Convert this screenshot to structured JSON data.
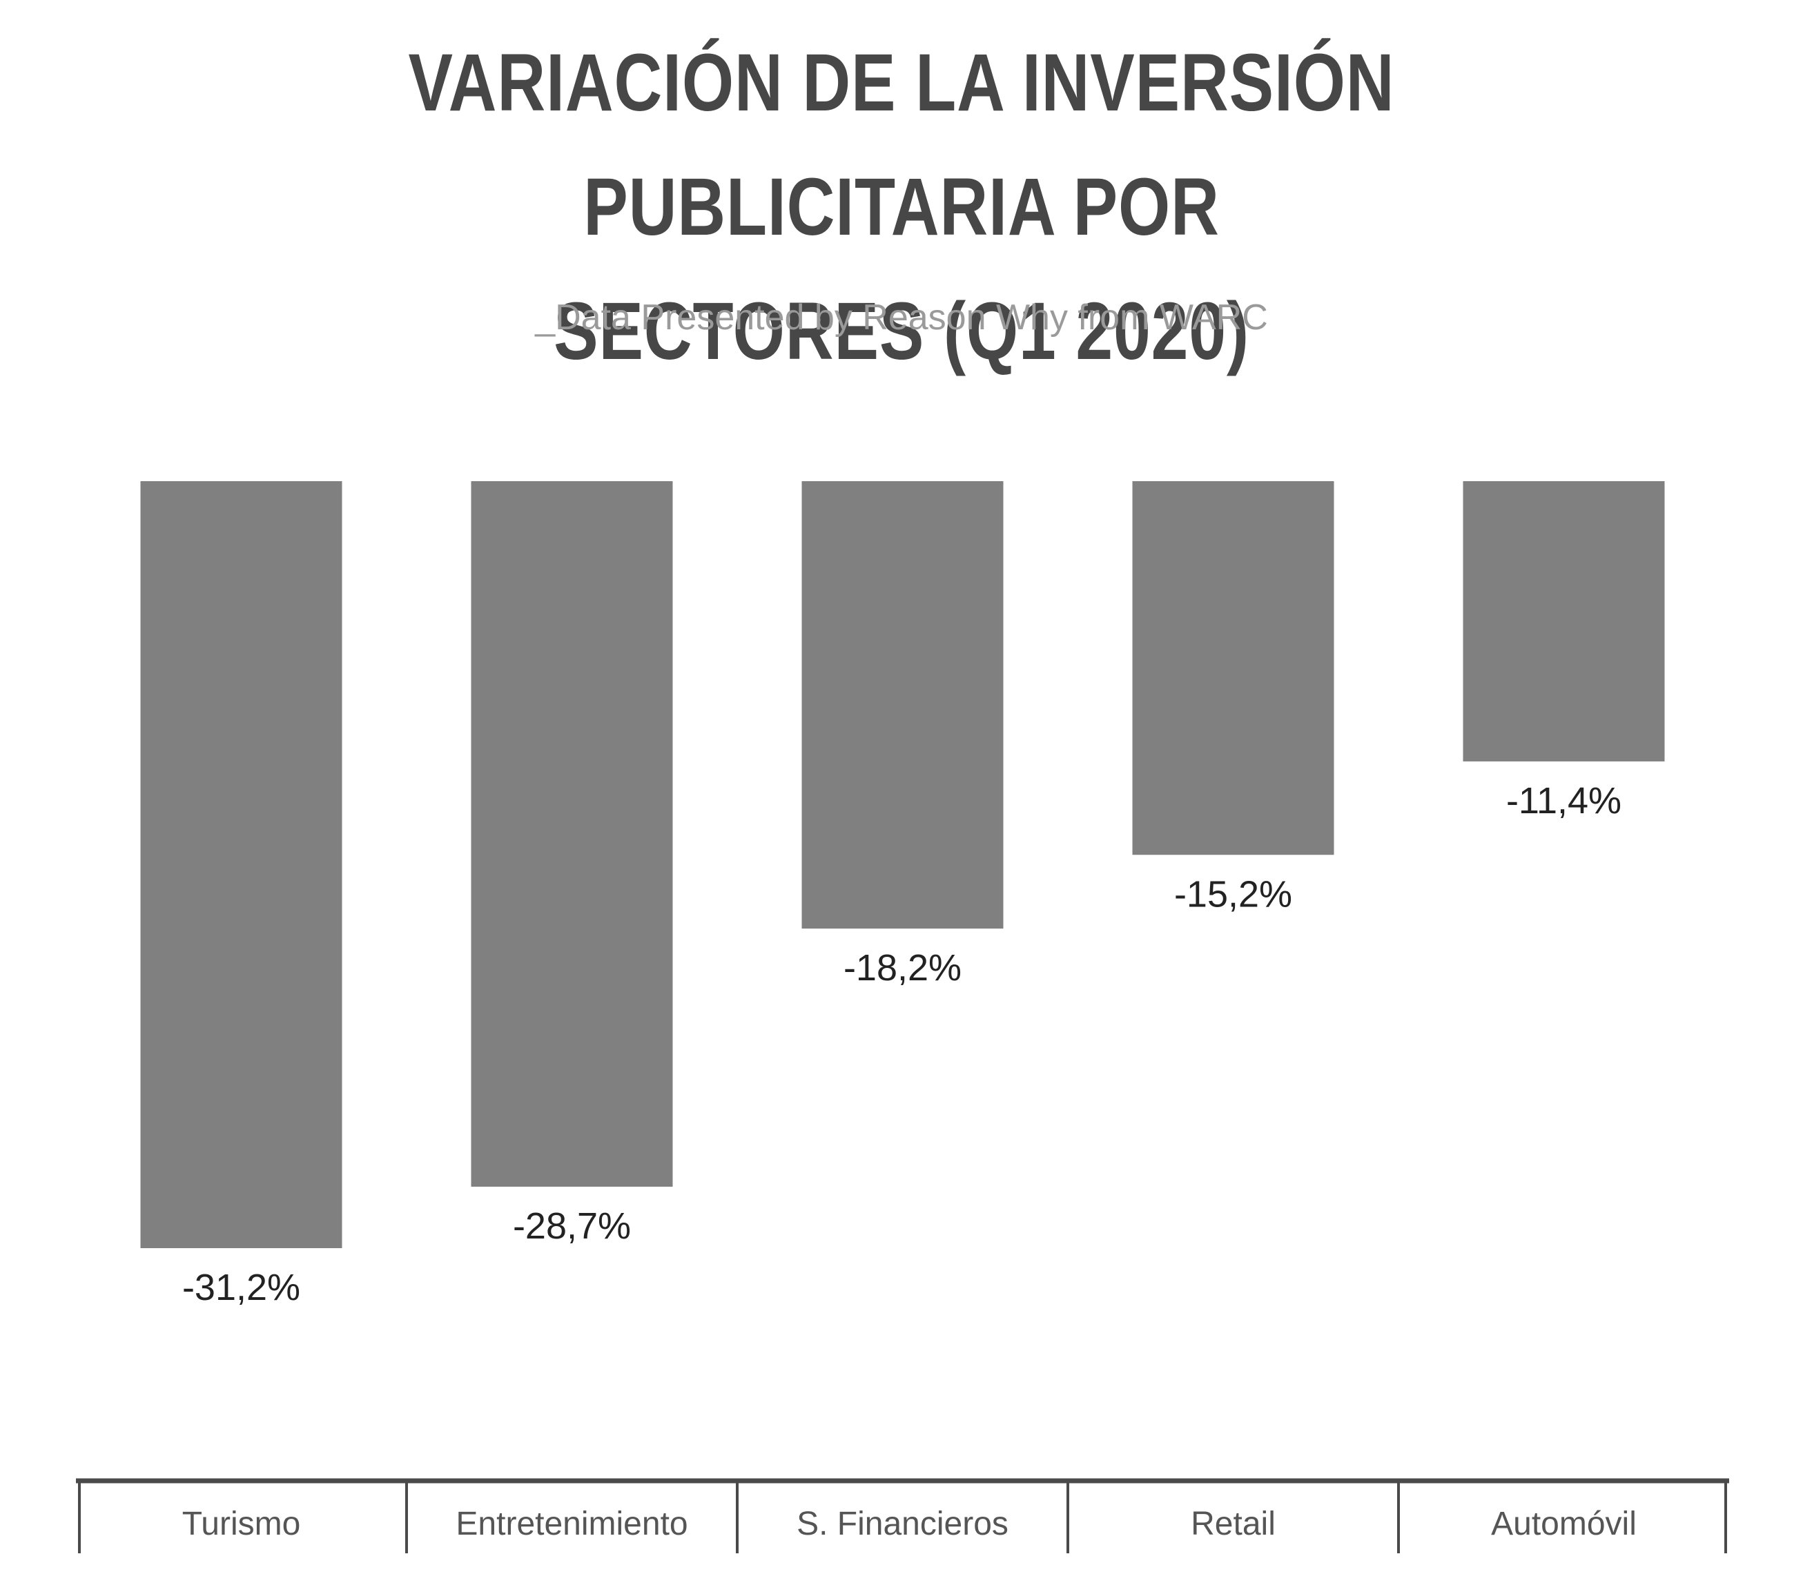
{
  "title": "VARIACIÓN DE LA INVERSIÓN PUBLICITARIA POR SECTORES (Q1 2020)",
  "subtitle": "_Data Presented by Reason Why from WARC",
  "colors": {
    "bar": "#808080",
    "title": "#474747",
    "subtitle": "#9a9a9a",
    "axis": "#4a4a4a",
    "label": "#222222",
    "category": "#555555"
  },
  "chart_data": {
    "type": "bar",
    "title": "VARIACIÓN DE LA INVERSIÓN PUBLICITARIA POR SECTORES (Q1 2020)",
    "subtitle": "_Data Presented by Reason Why from WARC",
    "categories": [
      "Turismo",
      "Entretenimiento",
      "S. Financieros",
      "Retail",
      "Automóvil"
    ],
    "values": [
      -31.2,
      -28.7,
      -18.2,
      -15.2,
      -11.4
    ],
    "value_labels": [
      "-31,2%",
      "-28,7%",
      "-18,2%",
      "-15,2%",
      "-11,4%"
    ],
    "xlabel": "",
    "ylabel": "",
    "ylim": [
      -31.2,
      0
    ],
    "grid": false,
    "legend": "none"
  }
}
